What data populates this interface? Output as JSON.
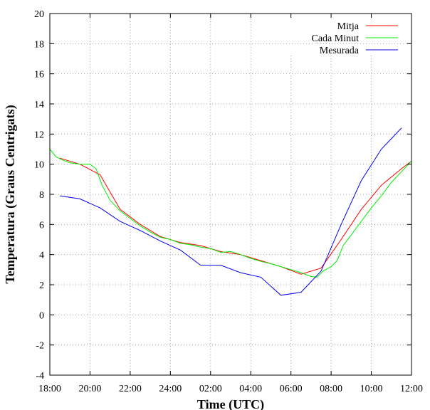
{
  "chart_data": {
    "type": "line",
    "xlabel": "Time (UTC)",
    "ylabel": "Temperatura (Graus Centrigats)",
    "x_tick_labels": [
      "18:00",
      "20:00",
      "22:00",
      "24:00",
      "02:00",
      "04:00",
      "06:00",
      "08:00",
      "10:00",
      "12:00"
    ],
    "y_ticks": [
      -4,
      -2,
      0,
      2,
      4,
      6,
      8,
      10,
      12,
      14,
      16,
      18,
      20
    ],
    "xlim_hours": [
      0,
      18
    ],
    "ylim": [
      -4,
      20
    ],
    "grid": true,
    "legend_position": "top-right",
    "series": [
      {
        "name": "Mitja",
        "color": "#ff0000",
        "x_hours": [
          0.5,
          1.5,
          2.5,
          3.5,
          4.5,
          5.5,
          6.5,
          7.5,
          8.5,
          9.5,
          10.5,
          11.5,
          12.5,
          13.5,
          14.5,
          15.5,
          16.5,
          17.5,
          18
        ],
        "values": [
          10.4,
          10.0,
          9.3,
          7.0,
          6.0,
          5.2,
          4.8,
          4.6,
          4.2,
          4.0,
          3.6,
          3.2,
          2.7,
          3.1,
          5.0,
          7.0,
          8.6,
          9.7,
          10.2
        ]
      },
      {
        "name": "Cada Minut",
        "color": "#00ee00",
        "x_hours": [
          0,
          0.3,
          0.6,
          1.0,
          1.5,
          2.0,
          2.3,
          2.6,
          3.0,
          3.5,
          4.0,
          4.5,
          5.0,
          5.5,
          6.0,
          6.5,
          7.0,
          7.5,
          8.0,
          8.5,
          9.0,
          9.5,
          10.0,
          10.5,
          11.0,
          11.5,
          12.0,
          12.5,
          13.0,
          13.3,
          13.6,
          14.0,
          14.3,
          14.6,
          15.0,
          15.5,
          16.0,
          16.5,
          17.0,
          17.5,
          18.0
        ],
        "values": [
          11.0,
          10.5,
          10.3,
          10.1,
          10.0,
          10.0,
          9.7,
          8.6,
          7.6,
          6.9,
          6.4,
          5.9,
          5.5,
          5.15,
          5.0,
          4.75,
          4.65,
          4.5,
          4.4,
          4.15,
          4.2,
          4.0,
          3.75,
          3.55,
          3.4,
          3.2,
          3.0,
          2.8,
          2.55,
          2.5,
          2.9,
          3.2,
          3.6,
          4.6,
          5.3,
          6.2,
          7.1,
          7.9,
          8.8,
          9.5,
          10.2
        ]
      },
      {
        "name": "Mesurada",
        "color": "#0000ee",
        "x_hours": [
          0.5,
          1.5,
          2.5,
          3.5,
          4.5,
          5.5,
          6.5,
          7.5,
          8.5,
          9.5,
          10.5,
          11.5,
          12.5,
          13.5,
          14.5,
          15.5,
          16.5,
          17.5
        ],
        "values": [
          7.9,
          7.7,
          7.1,
          6.2,
          5.6,
          4.9,
          4.3,
          3.3,
          3.3,
          2.8,
          2.5,
          1.3,
          1.5,
          2.9,
          6.0,
          8.9,
          11.0,
          12.4
        ]
      }
    ]
  }
}
